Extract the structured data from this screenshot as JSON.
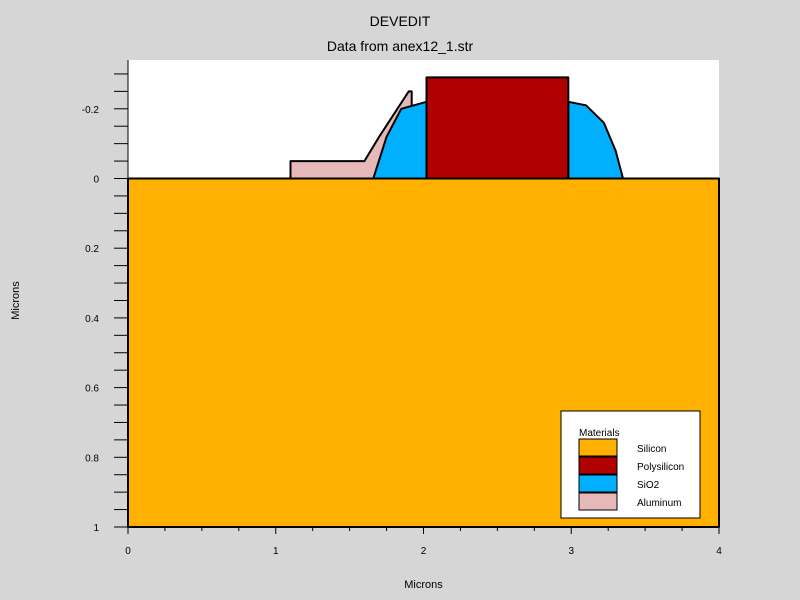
{
  "title": "DEVEDIT",
  "subtitle": "Data from anex12_1.str",
  "xlabel": "Microns",
  "ylabel": "Microns",
  "colors": {
    "background": "#d6d6d6",
    "plot_bg": "#ffffff",
    "Silicon": "#ffb000",
    "Polysilicon": "#b00000",
    "SiO2": "#00b0ff",
    "Aluminum": "#e6b8b8"
  },
  "chart_data": {
    "type": "cross-section",
    "xlim": [
      0,
      4
    ],
    "ylim": [
      -0.34,
      1.0
    ],
    "y_inverted": true,
    "x_ticks": [
      "0",
      "1",
      "2",
      "3",
      "4"
    ],
    "y_ticks": [
      "-0.2",
      "0",
      "0.2",
      "0.4",
      "0.6",
      "0.8",
      "1"
    ],
    "regions": [
      {
        "material": "Silicon",
        "points": [
          [
            0,
            0
          ],
          [
            4,
            0
          ],
          [
            4,
            1
          ],
          [
            0,
            1
          ]
        ]
      },
      {
        "material": "Aluminum",
        "points": [
          [
            1.1,
            -0.05
          ],
          [
            1.6,
            -0.05
          ],
          [
            1.7,
            -0.12
          ],
          [
            1.9,
            -0.25
          ],
          [
            1.92,
            -0.25
          ],
          [
            1.92,
            -0.1
          ],
          [
            1.66,
            0
          ],
          [
            1.1,
            0
          ]
        ]
      },
      {
        "material": "SiO2",
        "points": [
          [
            1.66,
            0
          ],
          [
            1.75,
            -0.12
          ],
          [
            1.85,
            -0.2
          ],
          [
            2.02,
            -0.22
          ],
          [
            2.02,
            0
          ],
          [
            2.98,
            0
          ],
          [
            2.98,
            -0.22
          ],
          [
            3.1,
            -0.21
          ],
          [
            3.22,
            -0.16
          ],
          [
            3.3,
            -0.08
          ],
          [
            3.35,
            0
          ]
        ]
      },
      {
        "material": "Polysilicon",
        "points": [
          [
            2.02,
            0
          ],
          [
            2.02,
            -0.29
          ],
          [
            2.98,
            -0.29
          ],
          [
            2.98,
            0
          ]
        ]
      }
    ],
    "legend": {
      "title": "Materials",
      "position": "bottom-right",
      "entries": [
        "Silicon",
        "Polysilicon",
        "SiO2",
        "Aluminum"
      ]
    }
  }
}
